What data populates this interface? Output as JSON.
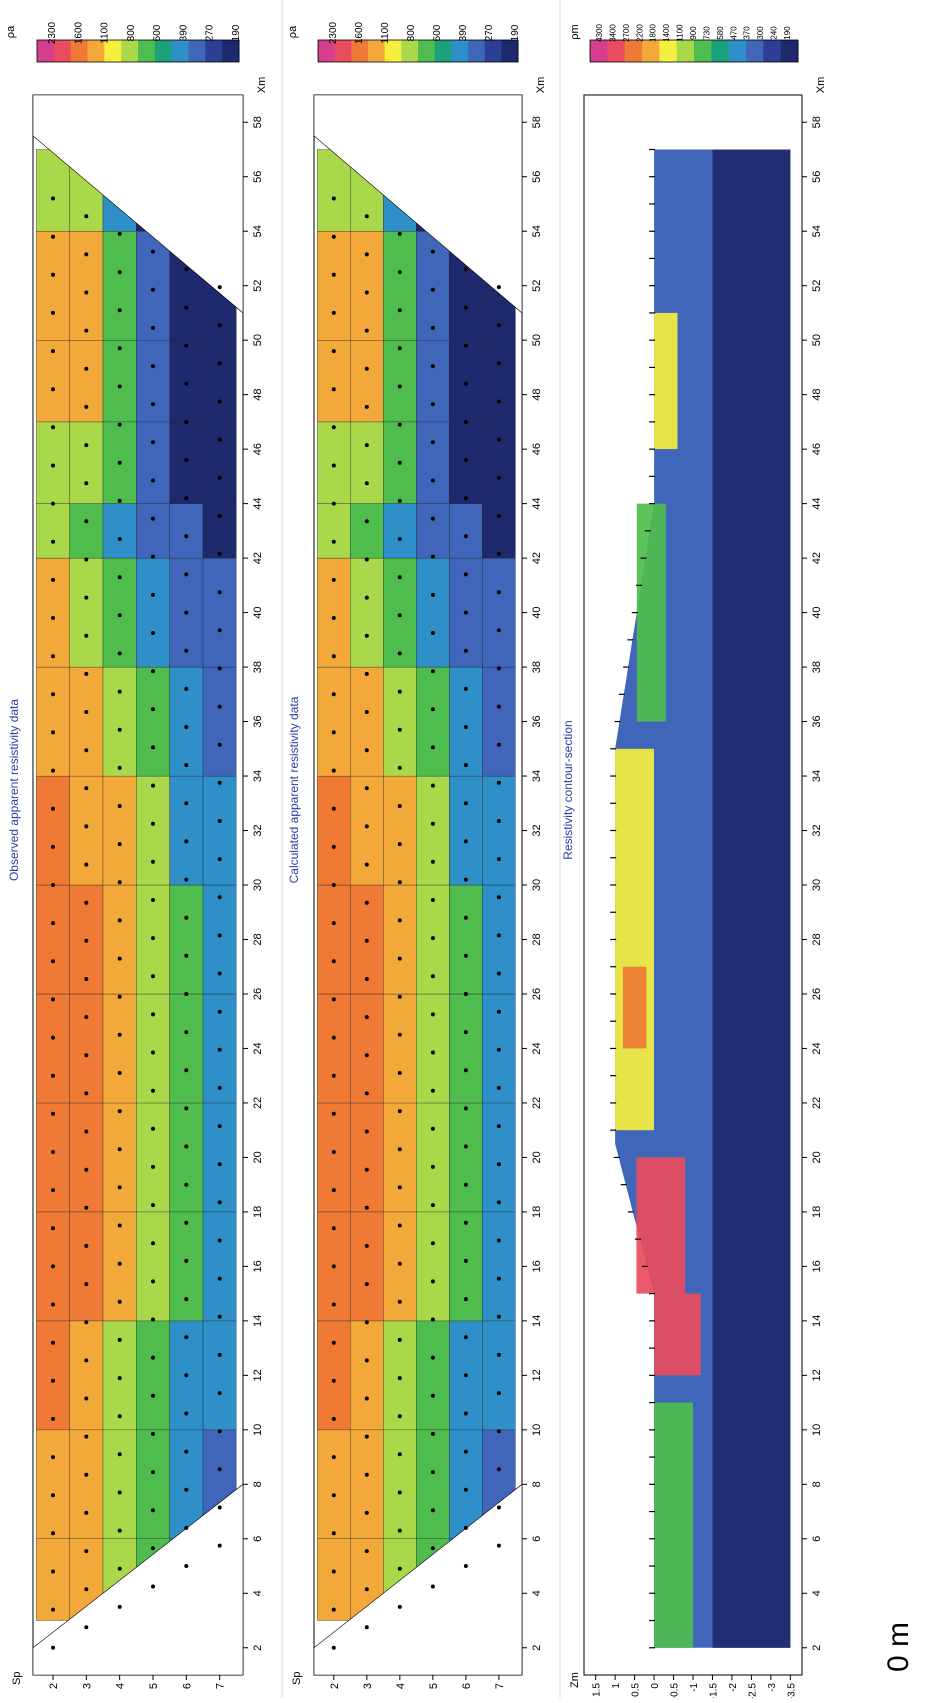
{
  "panels": [
    {
      "id": "observed",
      "title": "Observed apparent resistivity data",
      "ylabel": "Sp",
      "yticks": [
        "2",
        "3",
        "4",
        "5",
        "6",
        "7"
      ],
      "unit_label": "ρa",
      "x_unit": "Xm",
      "scale_labels": [
        "2300",
        "1600",
        "1100",
        "800",
        "600",
        "390",
        "270",
        "190"
      ]
    },
    {
      "id": "calculated",
      "title": "Calculated apparent resistivity data",
      "ylabel": "Sp",
      "yticks": [
        "2",
        "3",
        "4",
        "5",
        "6",
        "7"
      ],
      "unit_label": "ρa",
      "x_unit": "Xm",
      "scale_labels": [
        "2300",
        "1600",
        "1100",
        "800",
        "600",
        "390",
        "270",
        "190"
      ]
    },
    {
      "id": "model",
      "title": "Resistivity contour-section",
      "ylabel": "Zm",
      "yticks": [
        "1.5",
        "1",
        "0.5",
        "0",
        "-0.5",
        "-1",
        "-1.5",
        "-2",
        "-2.5",
        "-3",
        "-3.5"
      ],
      "unit_label": "ρm",
      "x_unit": "Xm",
      "scale_labels": [
        "4300",
        "3400",
        "2700",
        "2200",
        "1800",
        "1400",
        "1100",
        "900",
        "730",
        "580",
        "470",
        "370",
        "300",
        "240",
        "190"
      ]
    }
  ],
  "x_tick_labels": [
    "2",
    "4",
    "6",
    "8",
    "10",
    "12",
    "14",
    "16",
    "18",
    "20",
    "22",
    "24",
    "26",
    "28",
    "30",
    "32",
    "34",
    "36",
    "38",
    "40",
    "42",
    "44",
    "46",
    "48",
    "50",
    "52",
    "54",
    "56",
    "58"
  ],
  "scale_bar_label": "0 m",
  "colors": {
    "palette": [
      "#d63f8d",
      "#e84c5e",
      "#ef7a36",
      "#f3a93a",
      "#f5ef3f",
      "#a9d84a",
      "#4fbd4e",
      "#1aa07a",
      "#2f8fc8",
      "#3f66b8",
      "#2d3f95",
      "#1f2a6e"
    ],
    "title": "#2b3fa6"
  },
  "chart_data": [
    {
      "type": "heatmap",
      "title": "Observed apparent resistivity data",
      "xlabel": "Xm",
      "ylabel": "Sp",
      "xlim": [
        1,
        59
      ],
      "ylim": [
        1.4,
        7.7
      ],
      "colorbar": {
        "label": "ρa",
        "levels": [
          2300,
          1600,
          1100,
          800,
          600,
          390,
          270,
          190
        ]
      },
      "profile": [
        {
          "x": 3,
          "r": [
            1300,
            1100,
            820,
            640,
            0,
            0
          ]
        },
        {
          "x": 6,
          "r": [
            1350,
            1150,
            850,
            650,
            520,
            360
          ]
        },
        {
          "x": 10,
          "r": [
            1200,
            1100,
            830,
            650,
            500,
            380
          ]
        },
        {
          "x": 14,
          "r": [
            2100,
            1800,
            1300,
            900,
            650,
            450
          ]
        },
        {
          "x": 18,
          "r": [
            2300,
            2100,
            1600,
            1000,
            720,
            500
          ]
        },
        {
          "x": 22,
          "r": [
            2200,
            2000,
            1500,
            1000,
            700,
            480
          ]
        },
        {
          "x": 26,
          "r": [
            2300,
            2050,
            1500,
            950,
            680,
            450
          ]
        },
        {
          "x": 30,
          "r": [
            1800,
            1600,
            1200,
            850,
            600,
            420
          ]
        },
        {
          "x": 34,
          "r": [
            1500,
            1300,
            1000,
            750,
            540,
            380
          ]
        },
        {
          "x": 38,
          "r": [
            1300,
            1100,
            850,
            620,
            420,
            300
          ]
        },
        {
          "x": 42,
          "r": [
            1000,
            800,
            600,
            400,
            300,
            250
          ]
        },
        {
          "x": 44,
          "r": [
            600,
            550,
            420,
            300,
            250,
            230
          ]
        },
        {
          "x": 47,
          "r": [
            1400,
            1200,
            800,
            400,
            260,
            240
          ]
        },
        {
          "x": 50,
          "r": [
            1600,
            1300,
            700,
            300,
            200,
            180
          ]
        },
        {
          "x": 54,
          "r": [
            1200,
            900,
            500,
            260,
            0,
            0
          ]
        },
        {
          "x": 57,
          "r": [
            600,
            0,
            0,
            0,
            0,
            0
          ]
        }
      ]
    },
    {
      "type": "heatmap",
      "title": "Calculated apparent resistivity data",
      "xlabel": "Xm",
      "ylabel": "Sp",
      "xlim": [
        1,
        59
      ],
      "ylim": [
        1.4,
        7.7
      ],
      "colorbar": {
        "label": "ρa",
        "levels": [
          2300,
          1600,
          1100,
          800,
          600,
          390,
          270,
          190
        ]
      },
      "profile": [
        {
          "x": 3,
          "r": [
            1300,
            1100,
            820,
            640,
            0,
            0
          ]
        },
        {
          "x": 6,
          "r": [
            1350,
            1150,
            850,
            650,
            520,
            360
          ]
        },
        {
          "x": 10,
          "r": [
            1200,
            1100,
            830,
            650,
            500,
            380
          ]
        },
        {
          "x": 14,
          "r": [
            2100,
            1800,
            1300,
            900,
            650,
            450
          ]
        },
        {
          "x": 18,
          "r": [
            2300,
            2100,
            1600,
            1000,
            720,
            500
          ]
        },
        {
          "x": 22,
          "r": [
            2200,
            2000,
            1500,
            1000,
            700,
            480
          ]
        },
        {
          "x": 26,
          "r": [
            2300,
            2050,
            1500,
            950,
            680,
            450
          ]
        },
        {
          "x": 30,
          "r": [
            1800,
            1600,
            1200,
            850,
            600,
            420
          ]
        },
        {
          "x": 34,
          "r": [
            1500,
            1300,
            1000,
            750,
            540,
            380
          ]
        },
        {
          "x": 38,
          "r": [
            1300,
            1100,
            850,
            620,
            420,
            300
          ]
        },
        {
          "x": 42,
          "r": [
            1000,
            800,
            600,
            400,
            300,
            250
          ]
        },
        {
          "x": 44,
          "r": [
            600,
            550,
            420,
            300,
            250,
            230
          ]
        },
        {
          "x": 47,
          "r": [
            1400,
            1200,
            800,
            400,
            260,
            240
          ]
        },
        {
          "x": 50,
          "r": [
            1600,
            1300,
            700,
            300,
            200,
            180
          ]
        },
        {
          "x": 54,
          "r": [
            1200,
            900,
            500,
            260,
            0,
            0
          ]
        },
        {
          "x": 57,
          "r": [
            600,
            0,
            0,
            0,
            0,
            0
          ]
        }
      ]
    },
    {
      "type": "heatmap",
      "title": "Resistivity contour-section",
      "xlabel": "Xm",
      "ylabel": "Zm",
      "xlim": [
        1,
        59
      ],
      "ylim": [
        -3.8,
        1.8
      ],
      "colorbar": {
        "label": "ρm",
        "levels": [
          4300,
          3400,
          2700,
          2200,
          1800,
          1400,
          1100,
          900,
          730,
          580,
          470,
          370,
          300,
          240,
          190
        ]
      },
      "surface": [
        {
          "x": 2,
          "z": 0
        },
        {
          "x": 15,
          "z": 0
        },
        {
          "x": 20.5,
          "z": 1.0
        },
        {
          "x": 35,
          "z": 1.0
        },
        {
          "x": 44,
          "z": 0
        },
        {
          "x": 57,
          "z": 0
        }
      ],
      "layers": [
        {
          "x": [
            2,
            11
          ],
          "z_top": 0,
          "z_bottom": -1.0,
          "resistivity": 900
        },
        {
          "x": [
            12,
            15
          ],
          "z_top": 0,
          "z_bottom": -1.2,
          "resistivity": 4000
        },
        {
          "x": [
            15,
            20
          ],
          "z_top": 0.6,
          "z_bottom": -0.8,
          "resistivity": 3400
        },
        {
          "x": [
            21,
            35
          ],
          "z_top": 1.0,
          "z_bottom": 0,
          "resistivity": 1400
        },
        {
          "x": [
            24,
            27
          ],
          "z_top": 0.8,
          "z_bottom": 0.2,
          "resistivity": 3000
        },
        {
          "x": [
            36,
            44
          ],
          "z_top": 0.7,
          "z_bottom": -0.3,
          "resistivity": 900
        },
        {
          "x": [
            46,
            51
          ],
          "z_top": 0,
          "z_bottom": -0.6,
          "resistivity": 1600
        },
        {
          "x": [
            2,
            57
          ],
          "z_top": -1.5,
          "z_bottom": -3.5,
          "resistivity": 200
        }
      ]
    }
  ]
}
